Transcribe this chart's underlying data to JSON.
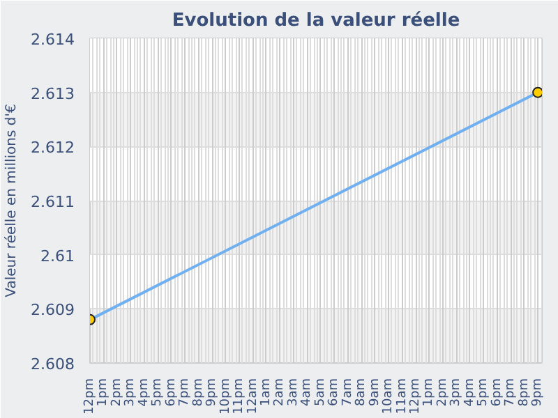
{
  "chart_data": {
    "type": "line",
    "title": "Evolution de la valeur réelle",
    "ylabel": "Valeur réelle en millions d'€",
    "categories": [
      "12pm",
      "1pm",
      "2pm",
      "3pm",
      "4pm",
      "5pm",
      "6pm",
      "7pm",
      "8pm",
      "9pm",
      "10pm",
      "11pm",
      "12am",
      "1am",
      "2am",
      "3am",
      "4am",
      "5am",
      "6am",
      "7am",
      "8am",
      "9am",
      "10am",
      "11am",
      "12pm",
      "1pm",
      "2pm",
      "3pm",
      "4pm",
      "5pm",
      "6pm",
      "7pm",
      "8pm",
      "9pm"
    ],
    "series": [
      {
        "color": "#70b0f0",
        "values": [
          2.6088,
          null,
          null,
          null,
          null,
          null,
          null,
          null,
          null,
          null,
          null,
          null,
          null,
          null,
          null,
          null,
          null,
          null,
          null,
          null,
          null,
          null,
          null,
          null,
          null,
          null,
          null,
          null,
          null,
          null,
          null,
          null,
          null,
          2.613
        ]
      }
    ],
    "marker": "circle",
    "ylim": [
      2.608,
      2.614
    ],
    "yticks": [
      2.608,
      2.609,
      2.61,
      2.611,
      2.612,
      2.613,
      2.614
    ],
    "grid": true
  }
}
